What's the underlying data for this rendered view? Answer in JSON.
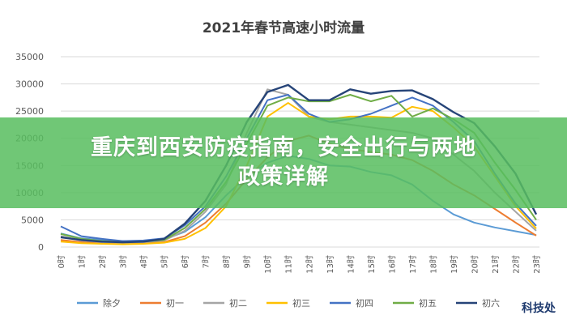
{
  "chart_data": {
    "type": "line",
    "title": "2021年春节高速小时流量",
    "categories": [
      "0时",
      "1时",
      "2时",
      "3时",
      "4时",
      "5时",
      "6时",
      "7时",
      "8时",
      "9时",
      "10时",
      "11时",
      "12时",
      "13时",
      "14时",
      "15时",
      "16时",
      "17时",
      "18时",
      "19时",
      "20时",
      "21时",
      "22时",
      "23时"
    ],
    "ylim": [
      0,
      35000
    ],
    "yticks": [
      0,
      5000,
      10000,
      15000,
      20000,
      25000,
      30000,
      35000
    ],
    "grid": true,
    "legend_position": "bottom",
    "series": [
      {
        "name": "除夕",
        "color": "#5b9bd5",
        "values": [
          2500,
          1600,
          1300,
          1100,
          1100,
          1400,
          2800,
          5500,
          9500,
          13000,
          15500,
          16800,
          16200,
          15000,
          14800,
          13800,
          13200,
          11500,
          8500,
          6000,
          4500,
          3600,
          2900,
          2200
        ]
      },
      {
        "name": "初一",
        "color": "#ed7d31",
        "values": [
          1300,
          900,
          700,
          600,
          700,
          900,
          2000,
          4500,
          8000,
          12500,
          16500,
          19500,
          20500,
          19000,
          18000,
          17500,
          17000,
          16000,
          14000,
          11500,
          9500,
          7000,
          4500,
          2100
        ]
      },
      {
        "name": "初二",
        "color": "#a5a5a5",
        "values": [
          2000,
          1200,
          900,
          800,
          900,
          1200,
          3000,
          6500,
          11500,
          21000,
          29000,
          28000,
          24000,
          23000,
          22500,
          22000,
          21500,
          21000,
          20000,
          17000,
          14000,
          10000,
          6500,
          3000
        ]
      },
      {
        "name": "初三",
        "color": "#ffc000",
        "values": [
          1000,
          700,
          600,
          500,
          600,
          800,
          1500,
          3500,
          7500,
          15000,
          24000,
          26500,
          24000,
          23500,
          24000,
          24000,
          23800,
          25800,
          25000,
          22000,
          18500,
          13000,
          7500,
          3400
        ]
      },
      {
        "name": "初四",
        "color": "#4472c4",
        "values": [
          3800,
          2000,
          1500,
          1100,
          1200,
          1600,
          4000,
          7500,
          13000,
          20000,
          27000,
          28000,
          24500,
          23000,
          23500,
          24500,
          26000,
          27500,
          26000,
          23000,
          19500,
          13500,
          8000,
          3900
        ]
      },
      {
        "name": "初五",
        "color": "#70ad47",
        "values": [
          2400,
          1500,
          1100,
          900,
          1000,
          1300,
          3500,
          7000,
          12000,
          19000,
          26000,
          27500,
          26800,
          26800,
          28000,
          26800,
          27800,
          24000,
          25500,
          23500,
          21000,
          15500,
          10500,
          5000
        ]
      },
      {
        "name": "初六",
        "color": "#264478",
        "values": [
          1800,
          1300,
          1000,
          900,
          1000,
          1500,
          4300,
          8500,
          15000,
          23000,
          28500,
          29800,
          27000,
          27000,
          29000,
          28200,
          28700,
          28800,
          27200,
          24800,
          22800,
          18500,
          13500,
          6000
        ]
      }
    ]
  },
  "banner": {
    "line1": "重庆到西安防疫指南，安全出行与两地",
    "line2": "政策详解"
  },
  "watermark": "科技处"
}
